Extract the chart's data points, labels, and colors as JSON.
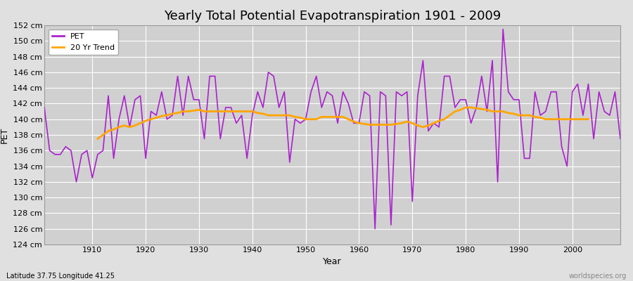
{
  "title": "Yearly Total Potential Evapotranspiration 1901 - 2009",
  "xlabel": "Year",
  "ylabel": "PET",
  "subtitle_left": "Latitude 37.75 Longitude 41.25",
  "subtitle_right": "worldspecies.org",
  "pet_color": "#aa22cc",
  "trend_color": "#ffa500",
  "fig_bg_color": "#e0e0e0",
  "plot_bg_color": "#d0d0d0",
  "grid_color": "#bbbbbb",
  "ylim": [
    124,
    152
  ],
  "ytick_start": 124,
  "ytick_end": 152,
  "ytick_interval": 2,
  "xlim_start": 1901,
  "xlim_end": 2009,
  "years": [
    1901,
    1902,
    1903,
    1904,
    1905,
    1906,
    1907,
    1908,
    1909,
    1910,
    1911,
    1912,
    1913,
    1914,
    1915,
    1916,
    1917,
    1918,
    1919,
    1920,
    1921,
    1922,
    1923,
    1924,
    1925,
    1926,
    1927,
    1928,
    1929,
    1930,
    1931,
    1932,
    1933,
    1934,
    1935,
    1936,
    1937,
    1938,
    1939,
    1940,
    1941,
    1942,
    1943,
    1944,
    1945,
    1946,
    1947,
    1948,
    1949,
    1950,
    1951,
    1952,
    1953,
    1954,
    1955,
    1956,
    1957,
    1958,
    1959,
    1960,
    1961,
    1962,
    1963,
    1964,
    1965,
    1966,
    1967,
    1968,
    1969,
    1970,
    1971,
    1972,
    1973,
    1974,
    1975,
    1976,
    1977,
    1978,
    1979,
    1980,
    1981,
    1982,
    1983,
    1984,
    1985,
    1986,
    1987,
    1988,
    1989,
    1990,
    1991,
    1992,
    1993,
    1994,
    1995,
    1996,
    1997,
    1998,
    1999,
    2000,
    2001,
    2002,
    2003,
    2004,
    2005,
    2006,
    2007,
    2008,
    2009
  ],
  "pet_values": [
    141.5,
    136.0,
    135.5,
    135.5,
    136.5,
    136.0,
    132.0,
    135.5,
    136.0,
    132.5,
    135.5,
    136.0,
    143.0,
    135.0,
    140.0,
    143.0,
    139.0,
    142.5,
    143.0,
    135.0,
    141.0,
    140.5,
    143.5,
    140.0,
    140.5,
    145.5,
    140.5,
    145.5,
    142.5,
    142.5,
    137.5,
    145.5,
    145.5,
    137.5,
    141.5,
    141.5,
    139.5,
    140.5,
    135.0,
    140.5,
    143.5,
    141.5,
    146.0,
    145.5,
    141.5,
    143.5,
    134.5,
    140.0,
    139.5,
    140.0,
    143.5,
    145.5,
    141.5,
    143.5,
    143.0,
    139.5,
    143.5,
    142.0,
    139.5,
    139.5,
    143.5,
    143.0,
    126.0,
    143.5,
    143.0,
    126.5,
    143.5,
    143.0,
    143.5,
    129.5,
    143.0,
    147.5,
    138.5,
    139.5,
    139.0,
    145.5,
    145.5,
    141.5,
    142.5,
    142.5,
    139.5,
    141.5,
    145.5,
    141.0,
    147.5,
    132.0,
    151.5,
    143.5,
    142.5,
    142.5,
    135.0,
    135.0,
    143.5,
    140.5,
    141.0,
    143.5,
    143.5,
    136.5,
    134.0,
    143.5,
    144.5,
    140.5,
    144.5,
    137.5,
    143.5,
    141.0,
    140.5,
    143.5,
    137.5
  ],
  "trend_values": [
    null,
    null,
    null,
    null,
    null,
    null,
    null,
    null,
    null,
    null,
    137.5,
    138.0,
    138.5,
    138.7,
    139.0,
    139.2,
    139.0,
    139.2,
    139.5,
    139.8,
    140.0,
    140.2,
    140.4,
    140.5,
    140.7,
    140.8,
    141.0,
    141.0,
    141.1,
    141.2,
    141.0,
    141.0,
    141.0,
    141.0,
    141.0,
    141.0,
    141.0,
    141.0,
    141.0,
    141.0,
    140.8,
    140.7,
    140.5,
    140.5,
    140.5,
    140.5,
    140.5,
    140.3,
    140.2,
    140.0,
    140.0,
    140.0,
    140.3,
    140.3,
    140.3,
    140.3,
    140.3,
    140.0,
    139.7,
    139.5,
    139.4,
    139.3,
    139.3,
    139.3,
    139.3,
    139.3,
    139.4,
    139.5,
    139.7,
    139.5,
    139.2,
    139.0,
    139.2,
    139.5,
    139.8,
    140.0,
    140.5,
    141.0,
    141.2,
    141.5,
    141.5,
    141.4,
    141.3,
    141.2,
    141.0,
    141.0,
    141.0,
    140.8,
    140.7,
    140.5,
    140.5,
    140.5,
    140.3,
    140.2,
    140.0,
    140.0,
    140.0,
    140.0,
    140.0,
    140.0,
    140.0,
    140.0,
    140.0,
    null,
    null,
    null,
    null,
    null,
    null
  ],
  "xtick_positions": [
    1910,
    1920,
    1930,
    1940,
    1950,
    1960,
    1970,
    1980,
    1990,
    2000
  ],
  "pet_linewidth": 1.2,
  "trend_linewidth": 2.0,
  "title_fontsize": 13,
  "tick_fontsize": 8,
  "xlabel_fontsize": 9,
  "ylabel_fontsize": 9
}
